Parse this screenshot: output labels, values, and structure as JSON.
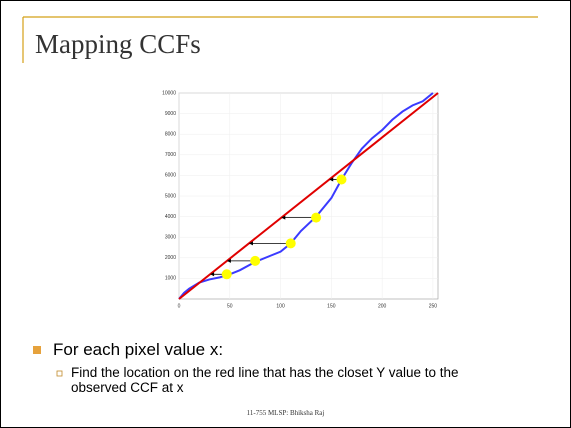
{
  "slide": {
    "title": "Mapping CCFs",
    "bullets": [
      {
        "text": "For each pixel value x:",
        "sub": [
          "Find the location on the red line that has the closet Y value to the observed CCF at x"
        ]
      }
    ],
    "footer": "11-755 MLSP: Bhiksha Raj"
  },
  "chart_data": {
    "type": "line",
    "xlim": [
      0,
      255
    ],
    "ylim": [
      0,
      10000
    ],
    "xticks": [
      0,
      50,
      100,
      150,
      200,
      250
    ],
    "yticks": [
      1000,
      2000,
      3000,
      4000,
      5000,
      6000,
      7000,
      8000,
      9000,
      10000
    ],
    "grid": true,
    "series": [
      {
        "color": "#3a3aff",
        "x": [
          0,
          5,
          10,
          20,
          30,
          40,
          50,
          60,
          75,
          90,
          100,
          110,
          120,
          135,
          150,
          160,
          170,
          180,
          190,
          200,
          210,
          220,
          230,
          240,
          250
        ],
        "values": [
          0,
          300,
          500,
          800,
          950,
          1050,
          1200,
          1400,
          1800,
          2100,
          2300,
          2700,
          3300,
          4000,
          4900,
          5800,
          6600,
          7300,
          7800,
          8200,
          8700,
          9100,
          9400,
          9600,
          10000
        ]
      },
      {
        "color": "#e00000",
        "x": [
          0,
          255
        ],
        "values": [
          0,
          10000
        ]
      }
    ],
    "points": {
      "color": "#ffff00",
      "x": [
        47,
        75,
        110,
        135,
        160
      ],
      "values": [
        1200,
        1850,
        2700,
        3950,
        5800
      ]
    }
  }
}
